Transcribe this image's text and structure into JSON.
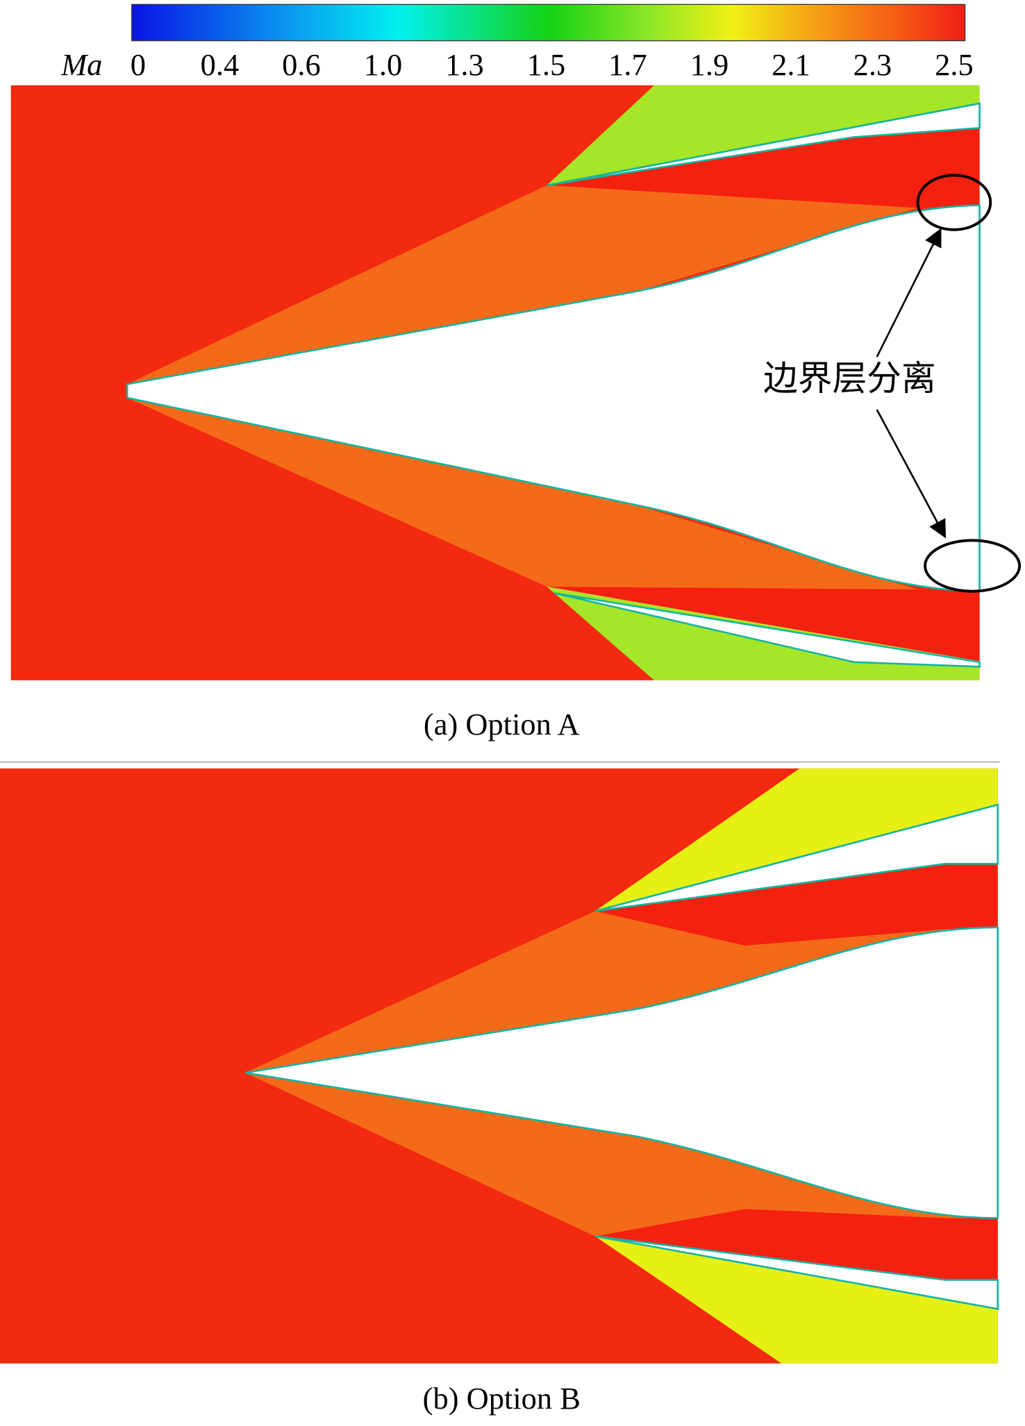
{
  "colorbar": {
    "label": "Ma",
    "ticks": [
      "0",
      "0.4",
      "0.6",
      "1.0",
      "1.3",
      "1.5",
      "1.7",
      "1.9",
      "2.1",
      "2.3",
      "2.5"
    ]
  },
  "annotation": "边界层分离",
  "panels": [
    {
      "caption": "(a) Option A"
    },
    {
      "caption": "(b) Option B"
    }
  ]
}
